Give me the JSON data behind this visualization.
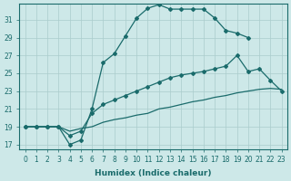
{
  "xlabel": "Humidex (Indice chaleur)",
  "bg_color": "#cde8e8",
  "grid_color": "#aacccc",
  "line_color": "#1a6b6b",
  "xlim": [
    -0.5,
    23.5
  ],
  "ylim": [
    16.5,
    32.8
  ],
  "yticks": [
    17,
    19,
    21,
    23,
    25,
    27,
    29,
    31
  ],
  "xticks": [
    0,
    1,
    2,
    3,
    4,
    5,
    6,
    7,
    8,
    9,
    10,
    11,
    12,
    13,
    14,
    15,
    16,
    17,
    18,
    19,
    20,
    21,
    22,
    23
  ],
  "line1_x": [
    0,
    1,
    2,
    3,
    4,
    5,
    6,
    7,
    8,
    9,
    10,
    11,
    12,
    13,
    14,
    15,
    16,
    17,
    18,
    19,
    20
  ],
  "line1_y": [
    19.0,
    19.0,
    19.0,
    19.0,
    17.0,
    17.5,
    21.0,
    26.2,
    27.2,
    29.2,
    31.2,
    32.3,
    32.7,
    32.2,
    32.2,
    32.2,
    32.2,
    31.2,
    29.8,
    29.5,
    29.0
  ],
  "line2_x": [
    0,
    1,
    2,
    3,
    4,
    5,
    6,
    7,
    8,
    9,
    10,
    11,
    12,
    13,
    14,
    15,
    16,
    17,
    18,
    19,
    20,
    21,
    22,
    23
  ],
  "line2_y": [
    19.0,
    19.0,
    19.0,
    19.0,
    18.0,
    18.5,
    20.5,
    21.5,
    22.0,
    22.5,
    23.0,
    23.5,
    24.0,
    24.5,
    24.8,
    25.0,
    25.2,
    25.5,
    25.8,
    27.0,
    25.2,
    25.5,
    24.2,
    23.0
  ],
  "line3_x": [
    0,
    1,
    2,
    3,
    4,
    5,
    6,
    7,
    8,
    9,
    10,
    11,
    12,
    13,
    14,
    15,
    16,
    17,
    18,
    19,
    20,
    21,
    22,
    23
  ],
  "line3_y": [
    19.0,
    19.0,
    19.0,
    19.0,
    18.5,
    18.8,
    19.0,
    19.5,
    19.8,
    20.0,
    20.3,
    20.5,
    21.0,
    21.2,
    21.5,
    21.8,
    22.0,
    22.3,
    22.5,
    22.8,
    23.0,
    23.2,
    23.3,
    23.2
  ],
  "tick_fontsize": 5.5,
  "xlabel_fontsize": 6.5
}
